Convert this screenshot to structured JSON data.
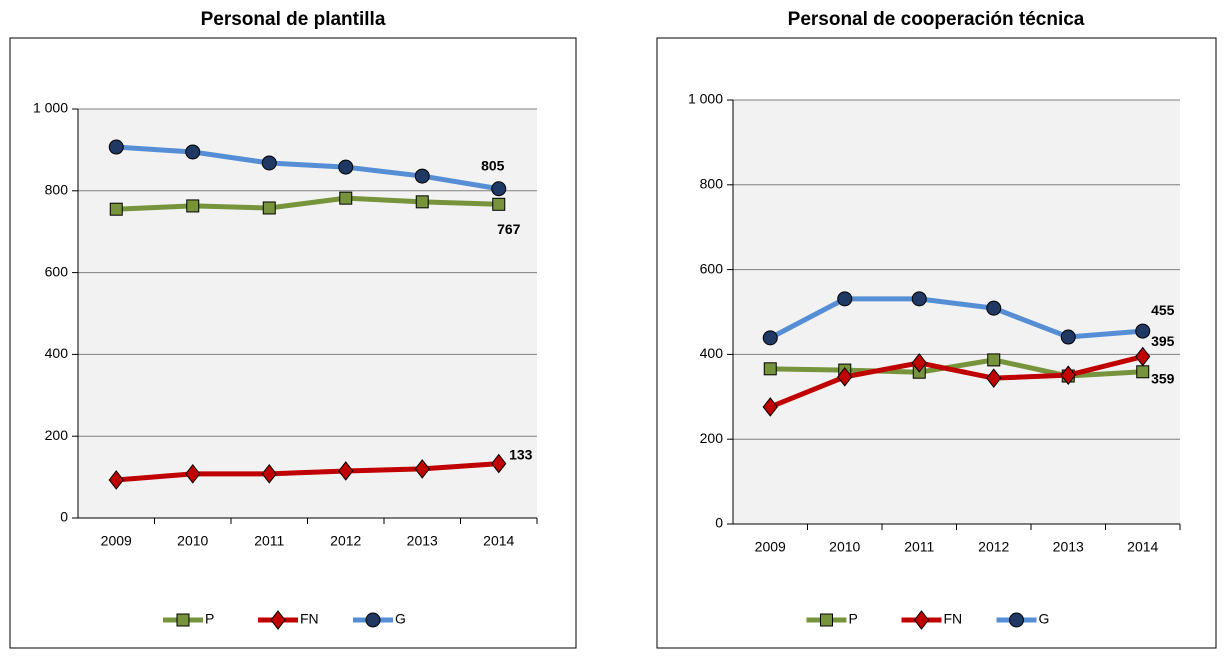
{
  "chart_data": [
    {
      "type": "line",
      "title": "Personal de plantilla",
      "categories": [
        "2009",
        "2010",
        "2011",
        "2012",
        "2013",
        "2014"
      ],
      "series": [
        {
          "name": "P",
          "color": "#77933c",
          "marker": "square",
          "values": [
            755,
            763,
            758,
            782,
            773,
            767
          ]
        },
        {
          "name": "FN",
          "color": "#c00000",
          "marker": "diamond",
          "values": [
            93,
            108,
            108,
            115,
            120,
            133
          ]
        },
        {
          "name": "G",
          "color": "#558ed5",
          "marker": "circle",
          "values": [
            907,
            895,
            868,
            858,
            836,
            805
          ]
        }
      ],
      "ylim": [
        0,
        1000
      ],
      "yticks": [
        0,
        200,
        400,
        600,
        800,
        {
          "value": 1000,
          "label": "1 000"
        }
      ],
      "grid": true,
      "legend": "bottom",
      "data_labels": "last"
    },
    {
      "type": "line",
      "title": "Personal de cooperación técnica",
      "categories": [
        "2009",
        "2010",
        "2011",
        "2012",
        "2013",
        "2014"
      ],
      "series": [
        {
          "name": "P",
          "color": "#77933c",
          "marker": "square",
          "values": [
            366,
            363,
            358,
            387,
            349,
            359
          ]
        },
        {
          "name": "FN",
          "color": "#c00000",
          "marker": "diamond",
          "values": [
            276,
            347,
            380,
            344,
            351,
            395
          ]
        },
        {
          "name": "G",
          "color": "#558ed5",
          "marker": "circle",
          "values": [
            439,
            531,
            531,
            509,
            441,
            455
          ]
        }
      ],
      "ylim": [
        0,
        1000
      ],
      "yticks": [
        0,
        200,
        400,
        600,
        800,
        {
          "value": 1000,
          "label": "1 000"
        }
      ],
      "grid": true,
      "legend": "bottom",
      "data_labels": "last"
    }
  ]
}
